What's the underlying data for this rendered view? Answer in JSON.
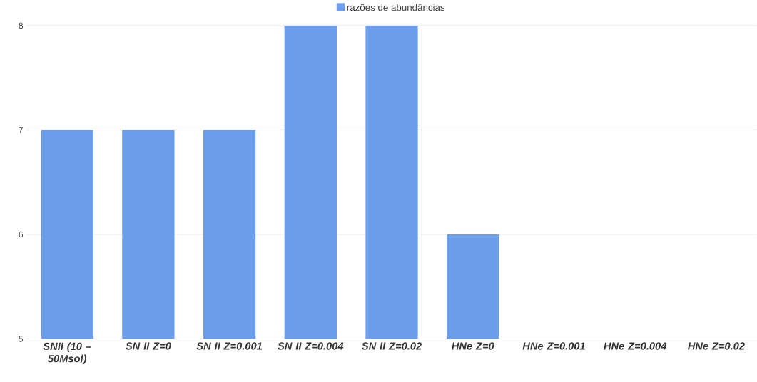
{
  "chart_data": {
    "type": "bar",
    "categories": [
      "SNII (10 – 50Msol)",
      "SN II Z=0",
      "SN II Z=0.001",
      "SN II Z=0.004",
      "SN II Z=0.02",
      "HNe Z=0",
      "HNe Z=0.001",
      "HNe Z=0.004",
      "HNe Z=0.02"
    ],
    "series": [
      {
        "name": "razões de abundâncias",
        "color": "#6d9eeb",
        "values": [
          7,
          7,
          7,
          8,
          8,
          6,
          null,
          null,
          null
        ]
      }
    ],
    "ylim": [
      5,
      8
    ],
    "yticks": [
      5,
      6,
      7,
      8
    ],
    "grid": "y",
    "legend": "top"
  }
}
